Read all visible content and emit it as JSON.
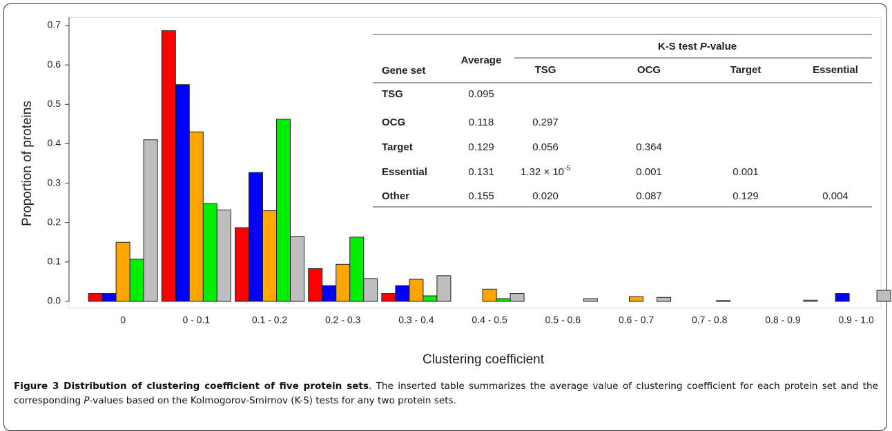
{
  "chart_data": {
    "type": "bar",
    "y_label": "Proportion of proteins",
    "x_label": "Clustering coefficient",
    "categories": [
      "0",
      "0 - 0.1",
      "0.1 - 0.2",
      "0.2 - 0.3",
      "0.3 - 0.4",
      "0.4 - 0.5",
      "0.5 - 0.6",
      "0.6 - 0.7",
      "0.7 - 0.8",
      "0.8 - 0.9",
      "0.9 - 1.0"
    ],
    "series": [
      {
        "color": "#ff0000",
        "values": [
          0.02,
          0.687,
          0.187,
          0.083,
          0.02,
          0,
          0,
          0,
          0,
          0,
          0
        ]
      },
      {
        "color": "#0000ff",
        "values": [
          0.02,
          0.55,
          0.327,
          0.04,
          0.04,
          0,
          0,
          0,
          0,
          0,
          0.02
        ]
      },
      {
        "color": "#ffa500",
        "values": [
          0.15,
          0.43,
          0.23,
          0.094,
          0.056,
          0.031,
          0,
          0.012,
          0,
          0,
          0
        ]
      },
      {
        "color": "#00ee00",
        "values": [
          0.107,
          0.248,
          0.462,
          0.163,
          0.014,
          0.007,
          0,
          0,
          0.002,
          0,
          0
        ]
      },
      {
        "color": "#bebebe",
        "values": [
          0.41,
          0.232,
          0.165,
          0.058,
          0.065,
          0.02,
          0.007,
          0.01,
          0,
          0.003,
          0.028
        ]
      }
    ],
    "ylim": [
      0,
      0.71
    ],
    "yticks": [
      {
        "value": 0,
        "label": "0.0"
      },
      0.1,
      0.2,
      0.3,
      0.4,
      0.5,
      0.6,
      0.7
    ],
    "grid": false
  },
  "table": {
    "header": {
      "gene_set": "Gene set",
      "average": "Average",
      "ks": [
        "K-S test ",
        "P",
        "-value"
      ],
      "columns": [
        "TSG",
        "OCG",
        "Target",
        "Essential"
      ]
    },
    "rows": [
      [
        "TSG",
        "0.095"
      ],
      [
        "OCG",
        "0.118",
        "0.297"
      ],
      [
        "Target",
        "0.129",
        "0.056",
        "0.364"
      ],
      [
        "Essential",
        "0.131",
        {
          "base": "1.32 × 10",
          "sup": "-5"
        },
        "0.001",
        "0.001"
      ],
      [
        "Other",
        "0.155",
        "0.020",
        "0.087",
        "0.129",
        "0.004"
      ]
    ]
  },
  "caption": {
    "bold": "Figure 3 Distribution of clustering coefficient of five protein sets",
    "text1": ". The inserted table summarizes the average value of clustering coefficient for each protein set and the corresponding ",
    "italic": "P",
    "text2": "-values based on the Kolmogorov-Smirnov (K-S) tests for any two protein sets."
  }
}
